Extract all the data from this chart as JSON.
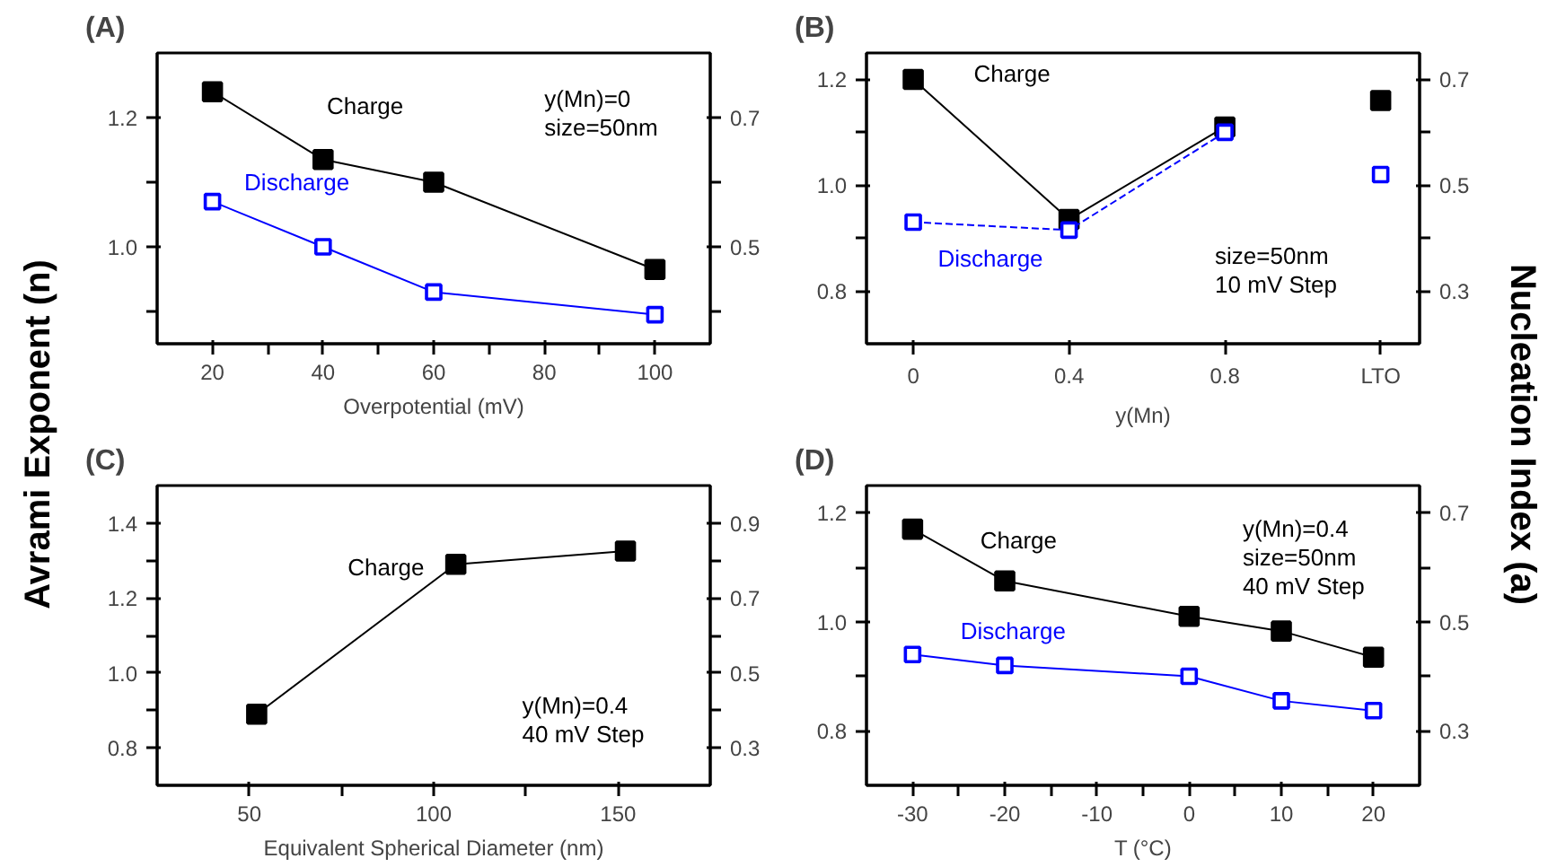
{
  "chart_data": [
    {
      "type": "line",
      "title": "(A)",
      "xlabel": "Overpotential (mV)",
      "ylabel": "Avrami Exponent (n)",
      "x": [
        20,
        40,
        60,
        100
      ],
      "xlim": [
        10,
        110
      ],
      "xticks": [
        20,
        {
          "value": 30,
          "label": null
        },
        40,
        {
          "value": 50,
          "label": null
        },
        60,
        {
          "value": 70,
          "label": null
        },
        80,
        {
          "value": 90,
          "label": null
        },
        100
      ],
      "ylim": [
        0.85,
        1.3
      ],
      "yticks": [
        {
          "value": 0.9,
          "label": null
        },
        {
          "value": 1.0,
          "label": "1.0"
        },
        {
          "value": 1.1,
          "label": null
        },
        1.2
      ],
      "y2lim": [
        0.35,
        0.8
      ],
      "y2ticks": [
        {
          "value": 0.4,
          "label": null
        },
        0.5,
        {
          "value": 0.6,
          "label": null
        },
        0.7
      ],
      "marker": "square",
      "grid": false,
      "annotations": [
        "y(Mn)=0",
        "size=50nm"
      ],
      "series": [
        {
          "name": "Charge",
          "color": "#000000",
          "values": [
            1.24,
            1.135,
            1.1,
            0.965
          ]
        },
        {
          "name": "Discharge",
          "color": "#0000ff",
          "values": [
            1.07,
            1.0,
            0.93,
            0.895
          ]
        }
      ]
    },
    {
      "type": "line",
      "title": "(B)",
      "xlabel": "y(Mn)",
      "y2label": "Nucleation Index (a)",
      "categories": [
        "0",
        "0.4",
        "0.8",
        "LTO"
      ],
      "ylim": [
        0.7,
        1.25
      ],
      "yticks": [
        0.8,
        {
          "value": 0.9,
          "label": null
        },
        {
          "value": 1.0,
          "label": "1.0"
        },
        {
          "value": 1.1,
          "label": null
        },
        1.2
      ],
      "y2lim": [
        0.2,
        0.75
      ],
      "y2ticks": [
        0.3,
        {
          "value": 0.4,
          "label": null
        },
        0.5,
        {
          "value": 0.6,
          "label": null
        },
        0.7
      ],
      "marker": "square",
      "grid": false,
      "annotations": [
        "size=50nm",
        "10 mV Step"
      ],
      "series": [
        {
          "name": "Charge",
          "color": "#000000",
          "values": [
            1.2,
            0.935,
            1.11,
            null
          ]
        },
        {
          "name": "Discharge",
          "color": "#0000ff",
          "line_style": "dashed",
          "values": [
            0.93,
            0.915,
            1.1,
            null
          ]
        },
        {
          "type": "scatter",
          "color": "#000000",
          "values": [
            null,
            null,
            null,
            1.16
          ]
        },
        {
          "type": "scatter",
          "color": "#0000ff",
          "values": [
            null,
            null,
            null,
            1.02
          ]
        }
      ]
    },
    {
      "type": "line",
      "title": "(C)",
      "xlabel": "Equivalent Spherical Diameter (nm)",
      "x": [
        52,
        106,
        152
      ],
      "xlim": [
        25,
        175
      ],
      "xticks": [
        50,
        {
          "value": 75,
          "label": null
        },
        100,
        {
          "value": 125,
          "label": null
        },
        150
      ],
      "ylim": [
        0.7,
        1.5
      ],
      "yticks": [
        0.8,
        {
          "value": 0.9,
          "label": null
        },
        {
          "value": 1.0,
          "label": "1.0"
        },
        {
          "value": 1.1,
          "label": null
        },
        1.2,
        {
          "value": 1.3,
          "label": null
        },
        1.4
      ],
      "y2lim": [
        0.2,
        1.0
      ],
      "y2ticks": [
        0.3,
        {
          "value": 0.4,
          "label": null
        },
        0.5,
        {
          "value": 0.6,
          "label": null
        },
        0.7,
        {
          "value": 0.8,
          "label": null
        },
        0.9
      ],
      "marker": "square",
      "grid": false,
      "annotations": [
        "y(Mn)=0.4",
        "40 mV Step"
      ],
      "series": [
        {
          "name": "Charge",
          "color": "#000000",
          "values": [
            0.89,
            1.29,
            1.325
          ]
        }
      ]
    },
    {
      "type": "line",
      "title": "(D)",
      "xlabel": "T (°C)",
      "x": [
        -30,
        -20,
        0,
        10,
        20
      ],
      "xlim": [
        -35,
        25
      ],
      "xticks": [
        -30,
        {
          "value": -25,
          "label": null
        },
        -20,
        {
          "value": -15,
          "label": null
        },
        -10,
        {
          "value": -5,
          "label": null
        },
        0,
        {
          "value": 5,
          "label": null
        },
        10,
        {
          "value": 15,
          "label": null
        },
        20
      ],
      "ylim": [
        0.7,
        1.25
      ],
      "yticks": [
        0.8,
        {
          "value": 0.9,
          "label": null
        },
        {
          "value": 1.0,
          "label": "1.0"
        },
        {
          "value": 1.1,
          "label": null
        },
        1.2
      ],
      "y2lim": [
        0.2,
        0.75
      ],
      "y2ticks": [
        0.3,
        {
          "value": 0.4,
          "label": null
        },
        0.5,
        {
          "value": 0.6,
          "label": null
        },
        0.7
      ],
      "marker": "square",
      "grid": false,
      "annotations": [
        "y(Mn)=0.4",
        "size=50nm",
        "40 mV Step"
      ],
      "series": [
        {
          "name": "Charge",
          "color": "#000000",
          "values": [
            1.17,
            1.075,
            1.01,
            0.983,
            0.935
          ]
        },
        {
          "name": "Discharge",
          "color": "#0000ff",
          "values": [
            0.94,
            0.92,
            0.9,
            0.855,
            0.837
          ]
        }
      ]
    }
  ]
}
